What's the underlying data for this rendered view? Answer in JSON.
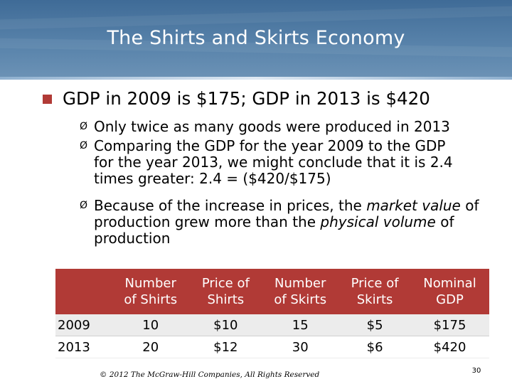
{
  "title": "The Shirts and Skirts Economy",
  "main_bullet": "GDP in 2009 is $175; GDP in 2013 is $420",
  "sub_bullets": [
    [
      "Only twice as many goods were produced in 2013"
    ],
    [
      "Comparing the GDP for the year 2009 to the GDP",
      "for the year 2013, we might conclude that it is 2.4",
      "times greater: 2.4 = ($420/$175)"
    ],
    [
      "Because of the increase in prices, the ",
      "market value",
      " of",
      "production grew more than the ",
      "physical volume",
      " of",
      "production"
    ]
  ],
  "arrow_glyph": "Ø",
  "table": {
    "headers": [
      "",
      [
        "Number",
        "of Shirts"
      ],
      [
        "Price of",
        "Shirts"
      ],
      [
        "Number",
        "of Skirts"
      ],
      [
        "Price of",
        "Skirts"
      ],
      [
        "Nominal",
        "GDP"
      ]
    ],
    "rows": [
      [
        "2009",
        "10",
        "$10",
        "15",
        "$5",
        "$175"
      ],
      [
        "2013",
        "20",
        "$12",
        "30",
        "$6",
        "$420"
      ]
    ]
  },
  "footer": {
    "copyright": "© 2012 The McGraw-Hill Companies, All Rights Reserved",
    "page": "30"
  },
  "colors": {
    "banner": "#4f7aa3",
    "accent": "#b13a36",
    "row_shade": "#ececec"
  }
}
